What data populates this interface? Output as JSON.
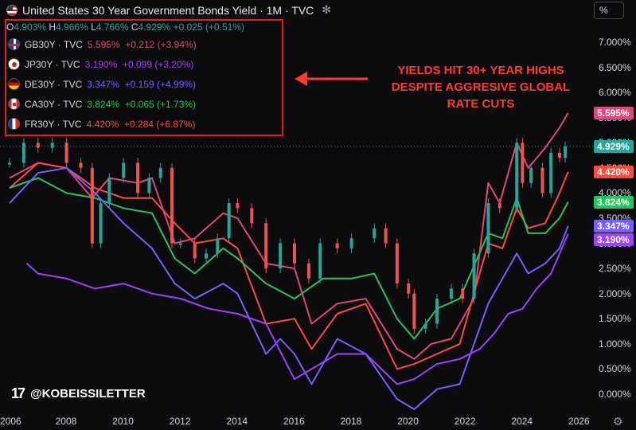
{
  "header": {
    "title": "United States 30 Year Government Bonds Yield · 1M · TVC",
    "ohlc": {
      "o_label": "O",
      "o_value": "4.903%",
      "h_label": "H",
      "h_value": "4.966%",
      "l_label": "L",
      "l_value": "4.766%",
      "c_label": "C",
      "c_value": "4.929%",
      "change": "+0.025 (+0.51%)"
    }
  },
  "legend": [
    {
      "symbol": "GB30Y · TVC",
      "values": "5.595%  +0.212 (+3.94%)",
      "color": "#e0457b",
      "flag": "gb"
    },
    {
      "symbol": "JP30Y · TVC",
      "values": "3.190%  +0.099 (+3.20%)",
      "color": "#a040ff",
      "flag": "jp"
    },
    {
      "symbol": "DE30Y · TVC",
      "values": "3.347%  +0.159 (+4.99%)",
      "color": "#7a5cff",
      "flag": "de"
    },
    {
      "symbol": "CA30Y · TVC",
      "values": "3.824%  +0.065 (+1.73%)",
      "color": "#22c55e",
      "flag": "ca"
    },
    {
      "symbol": "FR30Y · TVC",
      "values": "4.420%  +0.284 (+6.87%)",
      "color": "#ff4a3d",
      "flag": "fr"
    }
  ],
  "annotation": [
    "YIELDS HIT 30+ YEAR HIGHS",
    "DESPITE AGGRESIVE GLOBAL",
    "RATE CUTS"
  ],
  "annotation_color": "#ff3b2f",
  "scale_button": "%",
  "watermark": "@KOBEISSILETTER",
  "price_tags": [
    {
      "label": "5.595%",
      "value": 5.595,
      "color": "#e0457b"
    },
    {
      "label": "4.929%",
      "value": 4.929,
      "color": "#26a69a"
    },
    {
      "label": "4.420%",
      "value": 4.42,
      "color": "#ff4a3d"
    },
    {
      "label": "3.824%",
      "value": 3.824,
      "color": "#22c55e"
    },
    {
      "label": "3.347%",
      "value": 3.347,
      "color": "#7a5cff"
    },
    {
      "label": "3.190%",
      "value": 3.19,
      "color": "#a040ff"
    }
  ],
  "chart_data": {
    "type": "line",
    "title": "United States 30 Year Government Bonds Yield · 1M · TVC",
    "xlim": [
      2006,
      2026
    ],
    "ylim": [
      -0.1,
      7.4
    ],
    "x_ticks": [
      "2006",
      "2008",
      "2010",
      "2012",
      "2014",
      "2016",
      "2018",
      "2020",
      "2022",
      "2024",
      "2026"
    ],
    "y_ticks": [
      "0.000%",
      "0.500%",
      "1.000%",
      "1.500%",
      "2.000%",
      "2.500%",
      "3.000%",
      "3.500%",
      "4.000%",
      "4.500%",
      "5.000%",
      "5.500%",
      "6.000%",
      "6.500%",
      "7.000%"
    ],
    "grid": false,
    "series": [
      {
        "name": "US30Y",
        "style": "candles",
        "color": "#26a69a",
        "x": [
          2006,
          2006.5,
          2007,
          2007.5,
          2008,
          2008.5,
          2008.9,
          2009.2,
          2009.5,
          2010,
          2010.5,
          2010.9,
          2011.3,
          2011.7,
          2012,
          2012.5,
          2012.9,
          2013.3,
          2013.7,
          2014,
          2014.5,
          2015,
          2015.5,
          2016,
          2016.5,
          2016.9,
          2017.5,
          2018,
          2018.8,
          2019.2,
          2019.6,
          2020,
          2020.2,
          2020.6,
          2021,
          2021.5,
          2021.9,
          2022.3,
          2022.8,
          2023.2,
          2023.8,
          2024,
          2024.3,
          2024.7,
          2025,
          2025.3,
          2025.5
        ],
        "y": [
          4.6,
          5.0,
          4.9,
          5.0,
          4.6,
          4.5,
          3.0,
          3.8,
          4.3,
          4.6,
          4.0,
          4.3,
          4.5,
          3.0,
          3.0,
          2.7,
          2.8,
          3.1,
          3.8,
          3.7,
          3.4,
          2.5,
          3.0,
          2.6,
          2.3,
          3.0,
          2.9,
          3.1,
          3.3,
          3.0,
          2.2,
          2.0,
          1.3,
          1.4,
          1.9,
          2.1,
          1.9,
          2.8,
          3.8,
          3.7,
          5.0,
          4.2,
          4.5,
          4.0,
          4.8,
          4.7,
          4.929
        ]
      },
      {
        "name": "GB30Y",
        "color": "#e0457b",
        "x": [
          2006,
          2007,
          2008,
          2008.9,
          2009.5,
          2010.5,
          2011,
          2011.8,
          2012.5,
          2013.5,
          2014,
          2015,
          2016,
          2016.6,
          2017.5,
          2018.5,
          2019.6,
          2020.2,
          2020.8,
          2021.5,
          2022.3,
          2022.8,
          2023.2,
          2023.8,
          2024.2,
          2024.8,
          2025.3,
          2025.6
        ],
        "y": [
          4.3,
          4.6,
          4.5,
          3.9,
          4.3,
          4.2,
          4.3,
          3.0,
          3.1,
          3.6,
          3.5,
          2.6,
          2.5,
          1.4,
          1.8,
          1.9,
          0.9,
          0.7,
          1.0,
          1.1,
          1.9,
          4.2,
          3.8,
          5.0,
          4.5,
          4.9,
          5.3,
          5.595
        ]
      },
      {
        "name": "FR30Y",
        "color": "#ff4a3d",
        "x": [
          2006,
          2007,
          2008,
          2009,
          2010,
          2011,
          2011.8,
          2012.5,
          2013.5,
          2014,
          2015,
          2016,
          2016.6,
          2017.5,
          2018.5,
          2019.6,
          2020.2,
          2021,
          2021.8,
          2022.8,
          2023.3,
          2023.8,
          2024.2,
          2024.8,
          2025.3,
          2025.6
        ],
        "y": [
          4.1,
          4.6,
          4.5,
          4.1,
          3.9,
          3.9,
          3.4,
          3.0,
          3.1,
          2.9,
          1.4,
          1.5,
          0.9,
          1.6,
          1.8,
          0.5,
          0.6,
          0.8,
          1.0,
          3.0,
          2.9,
          3.7,
          3.3,
          3.4,
          4.0,
          4.42
        ]
      },
      {
        "name": "CA30Y",
        "color": "#22c55e",
        "x": [
          2006,
          2007,
          2008,
          2009,
          2010,
          2011,
          2011.8,
          2012.5,
          2013.5,
          2014,
          2015,
          2016,
          2017,
          2018,
          2018.8,
          2019.6,
          2020.2,
          2021,
          2021.8,
          2022.8,
          2023.3,
          2023.8,
          2024.2,
          2024.8,
          2025.3,
          2025.6
        ],
        "y": [
          4.1,
          4.3,
          4.0,
          3.9,
          3.7,
          3.6,
          2.7,
          2.4,
          2.9,
          2.7,
          2.2,
          1.9,
          2.3,
          2.3,
          2.4,
          1.5,
          1.1,
          1.7,
          1.9,
          3.2,
          3.1,
          3.9,
          3.2,
          3.2,
          3.5,
          3.824
        ]
      },
      {
        "name": "DE30Y",
        "color": "#7a5cff",
        "x": [
          2006,
          2007,
          2008,
          2009,
          2010,
          2011,
          2011.8,
          2012.5,
          2013.5,
          2014,
          2015,
          2015.5,
          2016,
          2016.6,
          2017.5,
          2018.5,
          2019.6,
          2020.2,
          2021,
          2021.8,
          2022.8,
          2023.3,
          2023.8,
          2024.2,
          2024.8,
          2025.3,
          2025.6
        ],
        "y": [
          3.8,
          4.4,
          4.5,
          4.0,
          3.4,
          2.9,
          2.2,
          1.9,
          2.2,
          2.0,
          0.8,
          1.1,
          0.8,
          0.2,
          1.1,
          0.8,
          -0.1,
          -0.3,
          0.1,
          0.2,
          1.8,
          2.3,
          2.8,
          2.4,
          2.6,
          2.9,
          3.347
        ]
      },
      {
        "name": "JP30Y",
        "color": "#a040ff",
        "x": [
          2006.6,
          2007,
          2008,
          2009,
          2010,
          2011,
          2012,
          2013,
          2014,
          2015,
          2016,
          2016.6,
          2017.5,
          2018.5,
          2019.6,
          2020.2,
          2021,
          2021.8,
          2022.5,
          2023,
          2023.5,
          2024,
          2024.5,
          2025,
          2025.6
        ],
        "y": [
          2.6,
          2.4,
          2.3,
          2.1,
          2.2,
          2.0,
          1.9,
          1.7,
          1.6,
          1.4,
          0.3,
          0.5,
          0.8,
          0.8,
          0.2,
          0.3,
          0.6,
          0.7,
          0.9,
          1.2,
          1.6,
          1.7,
          2.1,
          2.4,
          3.19
        ]
      }
    ]
  }
}
